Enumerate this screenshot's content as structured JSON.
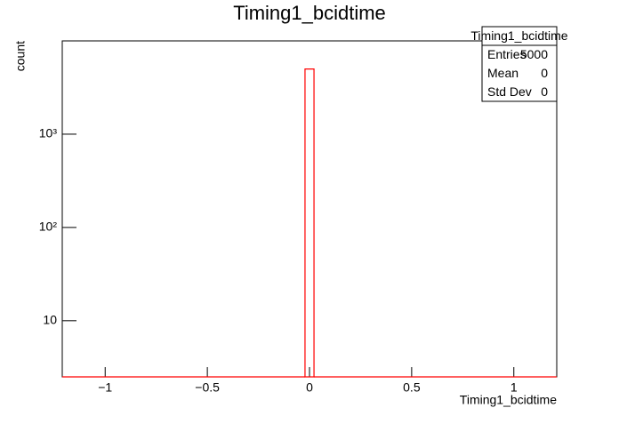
{
  "chart_data": {
    "type": "histogram",
    "title": "Timing1_bcidtime",
    "x_label": "Timing1_bcidtime",
    "y_label": "count",
    "bins": [
      -1.21,
      -0.022,
      0.022,
      1.21
    ],
    "values": [
      0,
      5000,
      0
    ],
    "color": "#ff0000",
    "xlim": [
      -1.21,
      1.21
    ],
    "xticks": [
      {
        "value": -1,
        "label": "−1"
      },
      {
        "value": -0.5,
        "label": "−0.5"
      },
      0,
      0.5,
      1
    ],
    "ylim": [
      2.5,
      10000
    ],
    "log_y": true,
    "yticks": [
      10,
      {
        "value": 100,
        "label": "10²"
      },
      {
        "value": 1000,
        "label": "10³"
      }
    ],
    "stats": {
      "title": "Timing1_bcidtime",
      "rows": [
        [
          "Entries",
          "5000"
        ],
        [
          "Mean",
          "0"
        ],
        [
          "Std Dev",
          "0"
        ]
      ]
    }
  }
}
